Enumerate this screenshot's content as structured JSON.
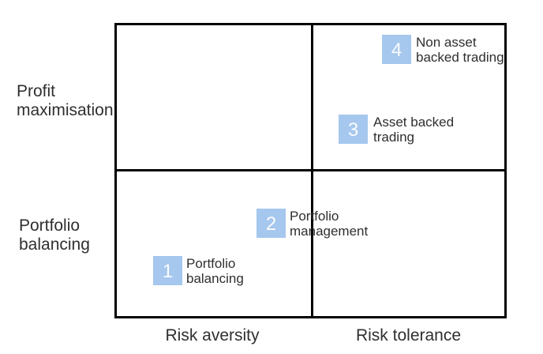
{
  "diagram": {
    "type": "2x2-matrix",
    "colors": {
      "background": "#ffffff",
      "grid_line": "#000000",
      "box_fill": "#a6c7ee",
      "box_number_text": "#ffffff",
      "label_text": "#2f2f2f"
    },
    "y_axis": {
      "top_label": {
        "line1": "Profit",
        "line2": "maximisation"
      },
      "bottom_label": {
        "line1": "Portfolio",
        "line2": "balancing"
      }
    },
    "x_axis": {
      "left_label": "Risk aversity",
      "right_label": "Risk tolerance"
    },
    "quadrant_items": [
      {
        "number": "1",
        "line1": "Portfolio",
        "line2": "balancing",
        "quadrant": "bottom-left"
      },
      {
        "number": "2",
        "line1": "Portfolio",
        "line2": "management",
        "quadrant": "bottom-center"
      },
      {
        "number": "3",
        "line1": "Asset backed",
        "line2": "trading",
        "quadrant": "top-right"
      },
      {
        "number": "4",
        "line1": "Non asset",
        "line2": "backed trading",
        "quadrant": "top-right"
      }
    ]
  }
}
